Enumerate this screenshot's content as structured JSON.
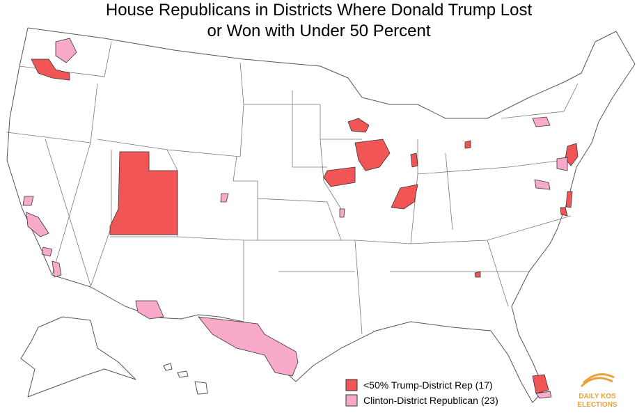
{
  "title_lines": [
    "House Republicans in Districts Where Donald Trump Lost",
    "or Won with Under 50 Percent"
  ],
  "legend": [
    {
      "label": "<50% Trump-District Rep (17)",
      "color": "#f25555"
    },
    {
      "label": "Clinton-District Republican (23)",
      "color": "#f9a9c9"
    }
  ],
  "logo": {
    "line1": "DAILY KOS",
    "line2": "ELECTIONS",
    "color": "#e8a23a"
  }
}
